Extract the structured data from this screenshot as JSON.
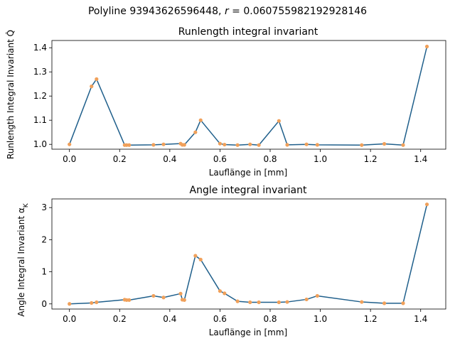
{
  "figure": {
    "suptitle": "Polyline 93943626596448, r = 0.060755982192928146",
    "suptitle_prefix": "Polyline 93943626596448, ",
    "suptitle_var": "r",
    "suptitle_value": " = 0.060755982192928146"
  },
  "colors": {
    "line": "#1f5f8b",
    "marker": "#f0a05a"
  },
  "chart_data": [
    {
      "type": "line",
      "title": "Runlength integral invariant",
      "xlabel": "Lauflänge in [mm]",
      "ylabel": "Runlength Integral Invariant Q̂",
      "xlim": [
        -0.07,
        1.5
      ],
      "ylim": [
        0.98,
        1.43
      ],
      "xticks": [
        0.0,
        0.2,
        0.4,
        0.6,
        0.8,
        1.0,
        1.2,
        1.4
      ],
      "xtick_labels": [
        "0.0",
        "0.2",
        "0.4",
        "0.6",
        "0.8",
        "1.0",
        "1.2",
        "1.4"
      ],
      "yticks": [
        1.0,
        1.1,
        1.2,
        1.3,
        1.4
      ],
      "ytick_labels": [
        "1.0",
        "1.1",
        "1.2",
        "1.3",
        "1.4"
      ],
      "series": [
        {
          "x": [
            0.0,
            0.088,
            0.108,
            0.22,
            0.228,
            0.238,
            0.335,
            0.375,
            0.443,
            0.45,
            0.458,
            0.502,
            0.523,
            0.6,
            0.618,
            0.67,
            0.72,
            0.755,
            0.835,
            0.868,
            0.945,
            0.988,
            1.165,
            1.255,
            1.33,
            1.425
          ],
          "y": [
            1.0,
            1.24,
            1.27,
            0.997,
            0.997,
            0.997,
            0.998,
            1.0,
            1.003,
            0.998,
            0.998,
            1.05,
            1.1,
            1.003,
            0.999,
            0.997,
            1.0,
            0.997,
            1.097,
            0.998,
            1.0,
            0.998,
            0.997,
            1.002,
            0.997,
            1.405
          ]
        }
      ]
    },
    {
      "type": "line",
      "title": "Angle integral invariant",
      "xlabel": "Lauflänge in [mm]",
      "ylabel": "Angle Integral Invariant α",
      "ylabel_sub": "K",
      "xlim": [
        -0.07,
        1.5
      ],
      "ylim": [
        -0.16,
        3.27
      ],
      "xticks": [
        0.0,
        0.2,
        0.4,
        0.6,
        0.8,
        1.0,
        1.2,
        1.4
      ],
      "xtick_labels": [
        "0.0",
        "0.2",
        "0.4",
        "0.6",
        "0.8",
        "1.0",
        "1.2",
        "1.4"
      ],
      "yticks": [
        0,
        1,
        2,
        3
      ],
      "ytick_labels": [
        "0",
        "1",
        "2",
        "3"
      ],
      "series": [
        {
          "x": [
            0.0,
            0.088,
            0.108,
            0.22,
            0.228,
            0.238,
            0.335,
            0.375,
            0.443,
            0.45,
            0.458,
            0.502,
            0.523,
            0.6,
            0.618,
            0.67,
            0.72,
            0.755,
            0.835,
            0.868,
            0.945,
            0.988,
            1.165,
            1.255,
            1.33,
            1.425
          ],
          "y": [
            0.0,
            0.03,
            0.05,
            0.13,
            0.12,
            0.12,
            0.25,
            0.2,
            0.32,
            0.13,
            0.12,
            1.5,
            1.38,
            0.4,
            0.33,
            0.08,
            0.05,
            0.05,
            0.05,
            0.06,
            0.14,
            0.25,
            0.06,
            0.02,
            0.02,
            3.1
          ]
        }
      ]
    }
  ]
}
